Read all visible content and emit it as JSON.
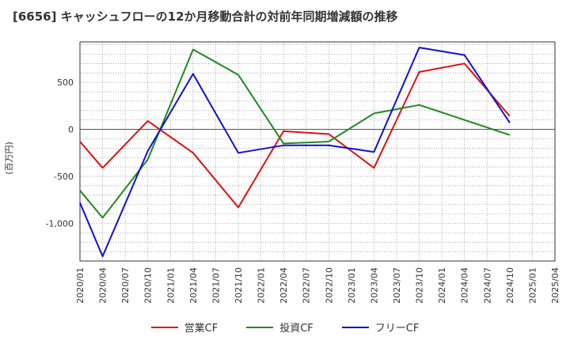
{
  "chart_data": {
    "type": "line",
    "title": "[6656]  キャッシュフローの12か月移動合計の対前年同期増減額の推移",
    "ylabel": "(百万円)",
    "xlabel": "",
    "ylim": [
      -1400,
      930
    ],
    "yticks": [
      500,
      0,
      -500,
      -1000
    ],
    "ytick_labels": [
      "500",
      "0",
      "-500",
      "-1,000"
    ],
    "grid": true,
    "legend_position": "bottom",
    "categories": [
      "2020/01",
      "2020/04",
      "2020/07",
      "2020/10",
      "2021/01",
      "2021/04",
      "2021/07",
      "2021/10",
      "2022/01",
      "2022/04",
      "2022/07",
      "2022/10",
      "2023/01",
      "2023/04",
      "2023/07",
      "2023/10",
      "2024/01",
      "2024/04",
      "2024/07",
      "2024/10",
      "2025/01",
      "2025/04"
    ],
    "series": [
      {
        "name": "営業CF",
        "color": "#dd1111",
        "values": [
          -130,
          -410,
          null,
          90,
          null,
          -250,
          null,
          -830,
          null,
          -20,
          null,
          -50,
          null,
          -410,
          null,
          610,
          null,
          700,
          null,
          140,
          null,
          null
        ]
      },
      {
        "name": "投資CF",
        "color": "#228822",
        "values": [
          -650,
          -940,
          null,
          -320,
          null,
          850,
          null,
          580,
          null,
          -150,
          null,
          -130,
          null,
          170,
          null,
          260,
          null,
          null,
          null,
          -60,
          null,
          null
        ]
      },
      {
        "name": "フリーCF",
        "color": "#1111cc",
        "values": [
          -780,
          -1350,
          null,
          -230,
          null,
          590,
          null,
          -250,
          null,
          -170,
          null,
          -170,
          null,
          -240,
          null,
          870,
          null,
          790,
          null,
          70,
          null,
          null
        ]
      }
    ]
  }
}
